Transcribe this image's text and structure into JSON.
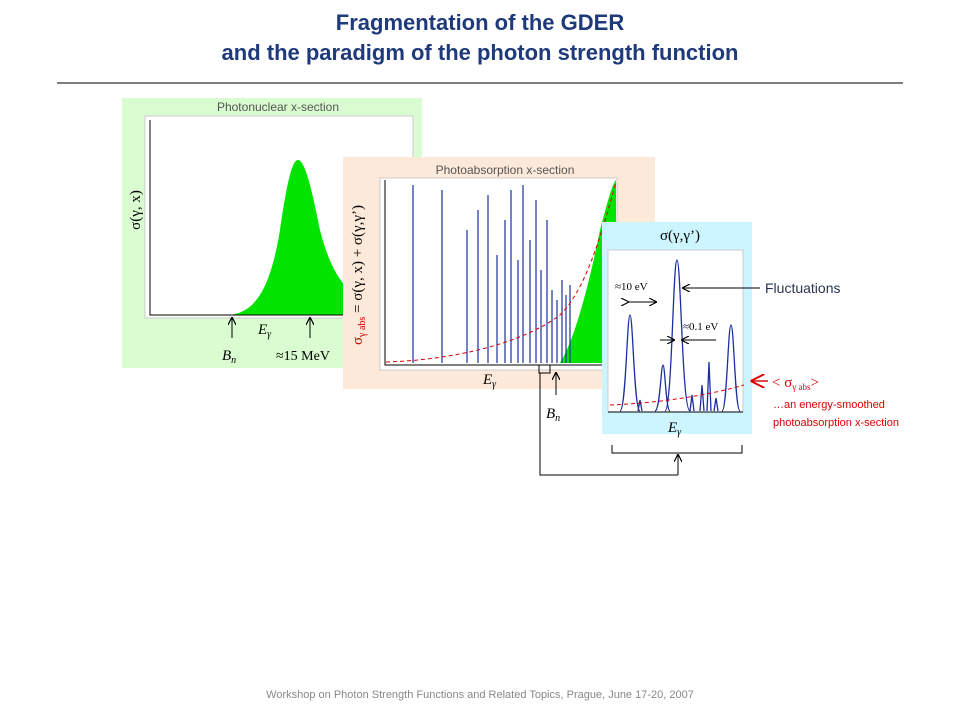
{
  "title": {
    "line1": "Fragmentation of the GDER",
    "line2": "and the paradigm of the photon strength function"
  },
  "panel1": {
    "title": "Photonuclear x-section",
    "ylabel": "σ(γ, x)",
    "bn": {
      "text": "B",
      "sub": "n"
    },
    "eg": {
      "text": "E",
      "sub": "γ"
    },
    "peak": "≈15 MeV"
  },
  "panel2": {
    "title": "Photoabsorption x-section",
    "ylabel": {
      "main": "σ",
      "sub": "γ abs",
      "rest": " = σ(γ, x) + σ(γ,γ’)"
    },
    "eg": {
      "text": "E",
      "sub": "γ"
    },
    "bn": {
      "text": "B",
      "sub": "n"
    }
  },
  "panel3": {
    "title": "σ(γ,γ’)",
    "spacing": "≈10 eV",
    "width": "≈0.1 eV",
    "eg": {
      "text": "E",
      "sub": "γ"
    }
  },
  "notes": {
    "fluctuations": "Fluctuations",
    "avg": {
      "open": "< σ",
      "sub": "γ abs",
      "close": ">"
    },
    "line1": "…an energy-smoothed",
    "line2": "photoabsorption x-section"
  },
  "footer": "Workshop on Photon Strength Functions and Related Topics, Prague, June 17-20, 2007"
}
